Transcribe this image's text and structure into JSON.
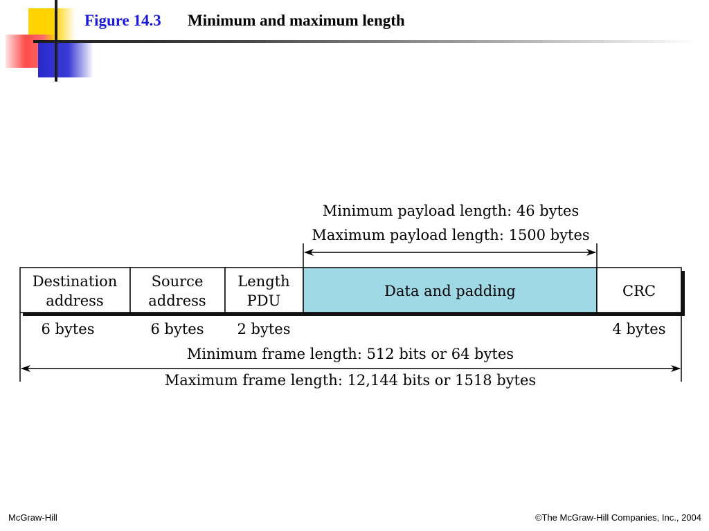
{
  "slide": {
    "figure_number": "Figure 14.3",
    "title": "Minimum and maximum length"
  },
  "diagram": {
    "payload_min": "Minimum payload length: 46 bytes",
    "payload_max": "Maximum payload length: 1500 bytes",
    "fields": [
      {
        "lines": [
          "Destination",
          "address"
        ],
        "size": "6 bytes"
      },
      {
        "lines": [
          "Source",
          "address"
        ],
        "size": "6 bytes"
      },
      {
        "lines": [
          "Length",
          "PDU"
        ],
        "size": "2 bytes"
      },
      {
        "lines": [
          "Data and padding"
        ],
        "size": ""
      },
      {
        "lines": [
          "CRC"
        ],
        "size": "4 bytes"
      }
    ],
    "data_fill_color": "#9fd9e6",
    "frame_min": "Minimum frame length: 512 bits or 64 bytes",
    "frame_max": "Maximum frame length: 12,144 bits or 1518 bytes"
  },
  "footer": {
    "left": "McGraw-Hill",
    "right": "©The McGraw-Hill Companies, Inc., 2004"
  }
}
